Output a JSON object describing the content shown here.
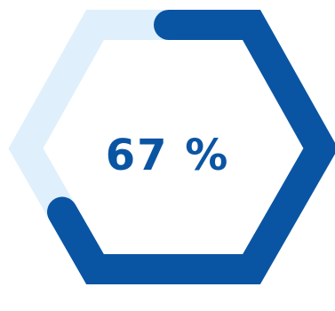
{
  "progress": {
    "value": 67,
    "max": 100,
    "label": "67 %"
  },
  "colors": {
    "progress": "#0a55a3",
    "track": "#dff0fc",
    "background": "#ffffff"
  }
}
